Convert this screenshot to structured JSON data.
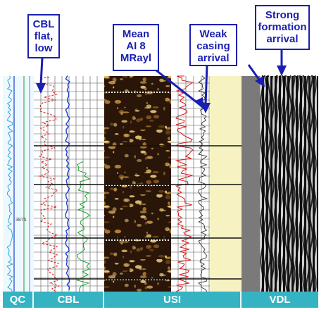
{
  "callouts": {
    "cbl": "CBL\nflat,\nlow",
    "mean_ai": "Mean\nAI 8\nMRayl",
    "weak_casing": "Weak\ncasing\narrival",
    "strong_formation": "Strong\nformation\narrival"
  },
  "depth_label": "3875",
  "tracks": {
    "qc": "QC",
    "cbl": "CBL",
    "usi": "USI",
    "vdl": "VDL"
  },
  "colors": {
    "callout_border": "#1a1fb0",
    "label_bar": "#35b3c2",
    "usi_dark": "#2a1608",
    "usi_light": "#d9b060",
    "curve_red": "#d81818",
    "curve_blue": "#1a3ccc",
    "curve_green": "#1aa02a",
    "vdl_bg": "#7a7a7a",
    "yellow_panel": "#f7f2c2"
  }
}
